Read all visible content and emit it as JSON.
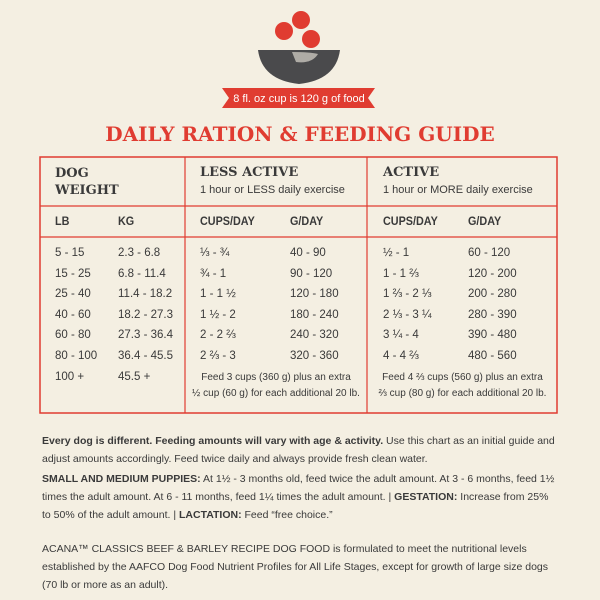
{
  "banner": "8 fl. oz cup is 120 g of food",
  "title": "DAILY RATION & FEEDING GUIDE",
  "table": {
    "dog_weight": "DOG WEIGHT",
    "less_active": {
      "title": "LESS ACTIVE",
      "subtitle": "1 hour or LESS daily exercise"
    },
    "active": {
      "title": "ACTIVE",
      "subtitle": "1 hour or MORE daily exercise"
    },
    "columns": [
      "LB",
      "KG",
      "CUPS/DAY",
      "G/DAY",
      "CUPS/DAY",
      "G/DAY"
    ],
    "rows": [
      [
        "5 - 15",
        "2.3 - 6.8",
        "⅓ - ¾",
        "40 - 90",
        "½ - 1",
        "60 - 120"
      ],
      [
        "15 - 25",
        "6.8 - 11.4",
        "¾ - 1",
        "90 - 120",
        "1 - 1 ⅔",
        "120 - 200"
      ],
      [
        "25 - 40",
        "11.4 - 18.2",
        "1 - 1 ½",
        "120 - 180",
        "1 ⅔ - 2 ⅓",
        "200 - 280"
      ],
      [
        "40 - 60",
        "18.2 - 27.3",
        "1 ½ - 2",
        "180 - 240",
        "2 ⅓ - 3 ¼",
        "280 - 390"
      ],
      [
        "60 - 80",
        "27.3 - 36.4",
        "2 - 2 ⅔",
        "240 - 320",
        "3 ¼ - 4",
        "390 - 480"
      ],
      [
        "80 - 100",
        "36.4 - 45.5",
        "2 ⅔ - 3",
        "320 - 360",
        "4 - 4 ⅔",
        "480 - 560"
      ]
    ],
    "extra": {
      "lb": "100 +",
      "kg": "45.5 +",
      "less_note": [
        "Feed 3 cups (360 g) plus an extra",
        "½ cup (60 g) for each additional 20 lb."
      ],
      "active_note": [
        "Feed 4 ⅔ cups (560 g) plus an extra",
        "⅔ cup (80 g) for each additional 20 lb."
      ]
    }
  },
  "notes": {
    "p1": {
      "lead": "Every dog is different. Feeding amounts will vary with age & activity.",
      "text": " Use this chart as an initial guide and adjust amounts accordingly. Feed twice daily and always provide fresh clean water."
    },
    "p2": {
      "lead1": "SMALL AND MEDIUM PUPPIES:",
      "text1": " At 1½ - 3 months old, feed twice the adult amount. At 3 - 6 months, feed 1½ times the adult amount. At 6 - 11 months, feed 1¼ times the adult amount.  |  ",
      "lead2": "GESTATION:",
      "text2": " Increase from 25% to 50% of the adult amount.  |  ",
      "lead3": "LACTATION:",
      "text3": " Feed “free choice.”"
    },
    "p3": "ACANA™ CLASSICS BEEF & BARLEY RECIPE DOG FOOD is formulated to meet the nutritional levels established by the AAFCO Dog Food Nutrient Profiles for All Life Stages, except for growth of large size dogs (70 lb or more as an adult)."
  }
}
